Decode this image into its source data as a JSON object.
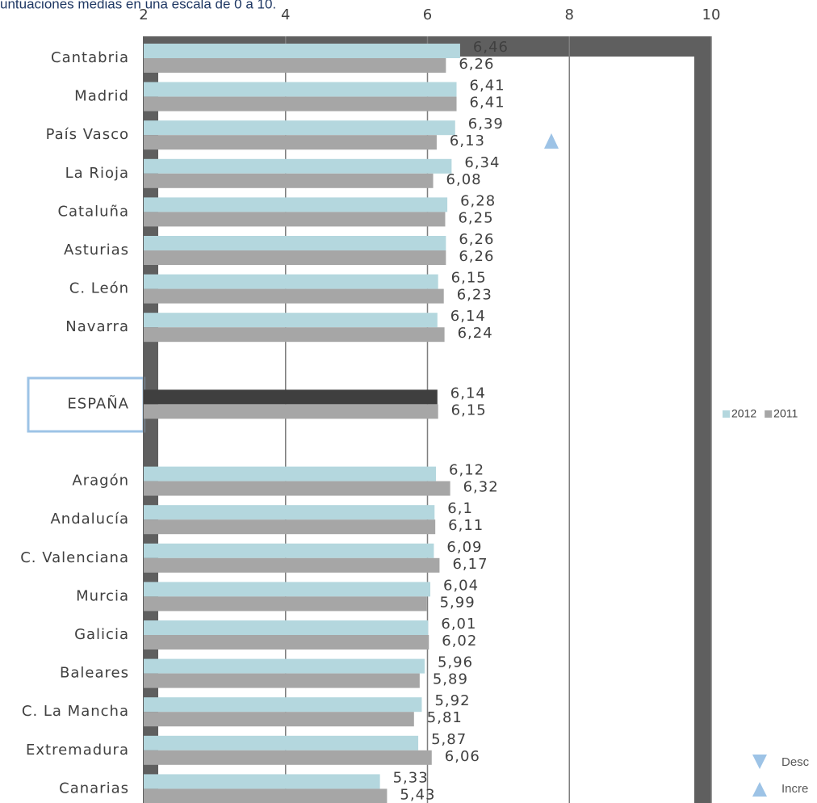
{
  "chart_data": {
    "type": "hbar",
    "title": "untuaciones medias en una escala de 0 a 10.",
    "categories": [
      "Cantabria",
      "Madrid",
      "País Vasco",
      "La Rioja",
      "Cataluña",
      "Asturias",
      "C. León",
      "Navarra",
      null,
      "ESPAÑA",
      null,
      "Aragón",
      "Andalucía",
      "C. Valenciana",
      "Murcia",
      "Galicia",
      "Baleares",
      "C. La Mancha",
      "Extremadura",
      "Canarias"
    ],
    "series": [
      {
        "name": "2012",
        "color": "#b4d7de",
        "colors": [
          "#b4d7de",
          "#b4d7de",
          "#b4d7de",
          "#b4d7de",
          "#b4d7de",
          "#b4d7de",
          "#b4d7de",
          "#b4d7de",
          "#b4d7de",
          "#3f3f3f",
          "#b4d7de",
          "#b4d7de",
          "#b4d7de",
          "#b4d7de",
          "#b4d7de",
          "#b4d7de",
          "#b4d7de",
          "#b4d7de",
          "#b4d7de",
          "#b4d7de"
        ],
        "values": [
          6.46,
          6.41,
          6.39,
          6.34,
          6.28,
          6.26,
          6.15,
          6.14,
          null,
          6.14,
          null,
          6.12,
          6.1,
          6.09,
          6.04,
          6.01,
          5.96,
          5.92,
          5.87,
          5.33
        ],
        "value_labels": [
          "6,46",
          "6,41",
          "6,39",
          "6,34",
          "6,28",
          "6,26",
          "6,15",
          "6,14",
          null,
          "6,14",
          null,
          "6,12",
          "6,1",
          "6,09",
          "6,04",
          "6,01",
          "5,96",
          "5,92",
          "5,87",
          "5,33"
        ]
      },
      {
        "name": "2011",
        "color": "#a6a6a6",
        "values": [
          6.26,
          6.41,
          6.13,
          6.08,
          6.25,
          6.26,
          6.23,
          6.24,
          null,
          6.15,
          null,
          6.32,
          6.11,
          6.17,
          5.99,
          6.02,
          5.89,
          5.81,
          6.06,
          5.43
        ],
        "value_labels": [
          "6,26",
          "6,41",
          "6,13",
          "6,08",
          "6,25",
          "6,26",
          "6,23",
          "6,24",
          null,
          "6,15",
          null,
          "6,32",
          "6,11",
          "6,17",
          "5,99",
          "6,02",
          "5,89",
          "5,81",
          "6,06",
          "5,43"
        ]
      }
    ],
    "xlim": [
      2,
      10
    ],
    "xticks": [
      2,
      4,
      6,
      8,
      10
    ],
    "grid": true,
    "legend": "right",
    "annotations": [
      "Desc",
      "Incre"
    ]
  }
}
